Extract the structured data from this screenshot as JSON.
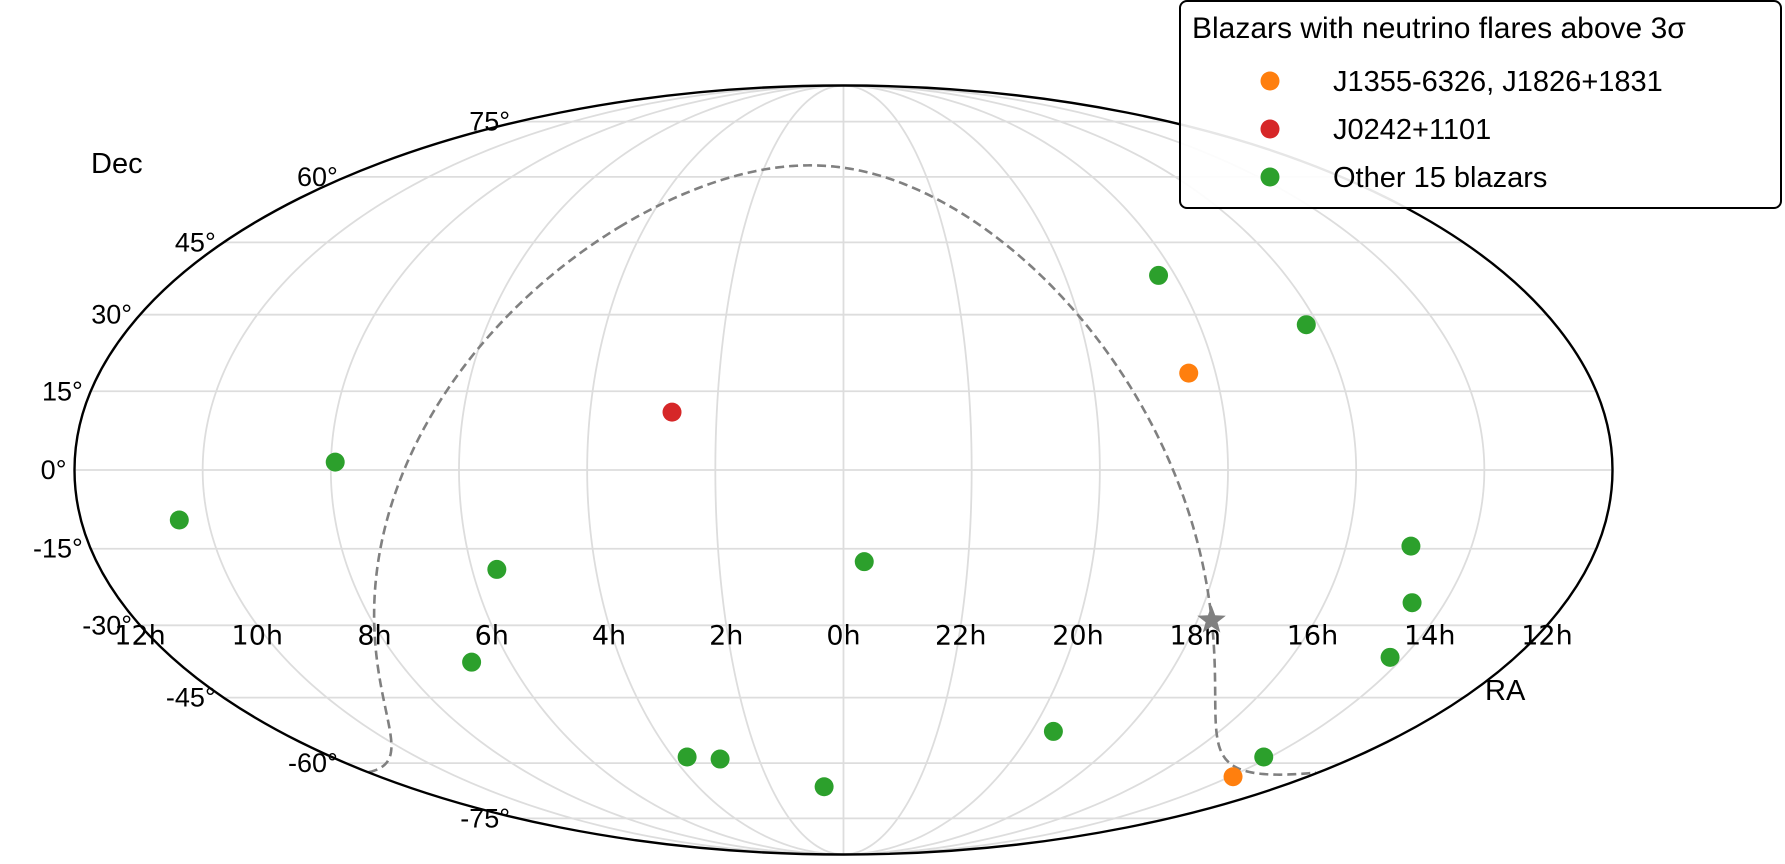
{
  "chart_data": {
    "type": "scatter",
    "projection": "mollweide",
    "xlabel": "RA",
    "ylabel": "Dec",
    "ra_tick_labels": [
      "12h",
      "10h",
      "8h",
      "6h",
      "4h",
      "2h",
      "0h",
      "22h",
      "20h",
      "18h",
      "16h",
      "14h",
      "12h"
    ],
    "dec_tick_labels": [
      "75°",
      "60°",
      "45°",
      "30°",
      "15°",
      "0°",
      "-15°",
      "-30°",
      "-45°",
      "-60°",
      "-75°"
    ],
    "grid": true,
    "legend": {
      "title": "Blazars with neutrino flares above 3σ",
      "placement": "top-right",
      "entries": [
        {
          "label": "J1355-6326, J1826+1831",
          "color": "#ff7f0e"
        },
        {
          "label": "J0242+1101",
          "color": "#d62728"
        },
        {
          "label": "Other 15 blazars",
          "color": "#2ca02c"
        }
      ]
    },
    "series": [
      {
        "name": "J1355-6326, J1826+1831",
        "color": "#ff7f0e",
        "points": [
          {
            "ra": 276.5,
            "dec": 18.5
          },
          {
            "ra": 208.8,
            "dec": -63.4
          }
        ]
      },
      {
        "name": "J0242+1101",
        "color": "#d62728",
        "points": [
          {
            "ra": 40.6,
            "dec": 11.0
          }
        ]
      },
      {
        "name": "Other 15 blazars",
        "color": "#2ca02c",
        "points": [
          {
            "ra": 274.5,
            "dec": 38.0
          },
          {
            "ra": 243.0,
            "dec": 28.0
          },
          {
            "ra": 156.8,
            "dec": -9.5
          },
          {
            "ra": 119.0,
            "dec": 1.5
          },
          {
            "ra": 84.0,
            "dec": -19.0
          },
          {
            "ra": 355.0,
            "dec": -17.5
          },
          {
            "ra": 224.5,
            "dec": -14.5
          },
          {
            "ra": 218.2,
            "dec": -25.5
          },
          {
            "ra": 213.5,
            "dec": -36.5
          },
          {
            "ra": 100.5,
            "dec": -37.5
          },
          {
            "ra": 293.0,
            "dec": -52.5
          },
          {
            "ra": 212.2,
            "dec": -58.5
          },
          {
            "ra": 55.0,
            "dec": -58.5
          },
          {
            "ra": 43.8,
            "dec": -59.0
          },
          {
            "ra": 8.0,
            "dec": -66.0
          }
        ]
      }
    ],
    "galactic_plane": {
      "style": "dashed",
      "color": "#808080"
    },
    "galactic_center_marker": {
      "shape": "star",
      "color": "#808080",
      "ra": 266.4,
      "dec": -29.0
    }
  }
}
